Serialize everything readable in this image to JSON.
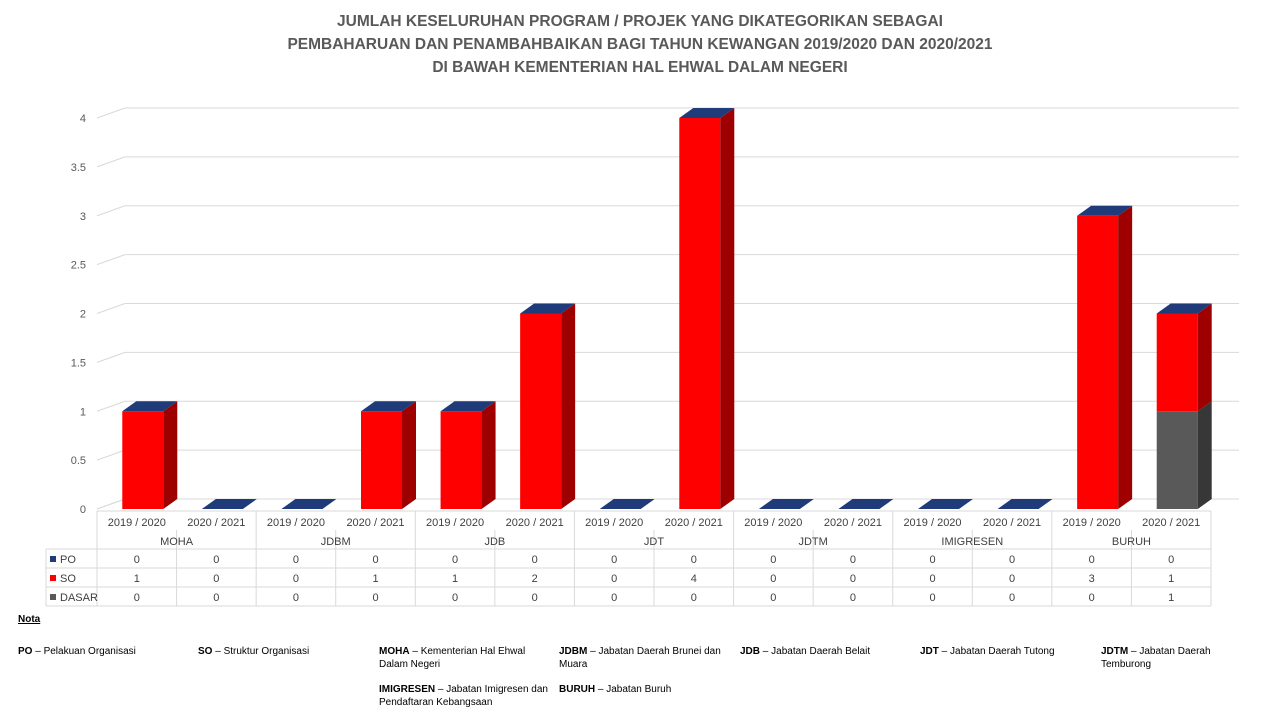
{
  "title": {
    "line1": "JUMLAH KESELURUHAN PROGRAM / PROJEK YANG DIKATEGORIKAN SEBAGAI",
    "line2": "PEMBAHARUAN DAN PENAMBAHBAIKAN BAGI TAHUN KEWANGAN 2019/2020 DAN 2020/2021",
    "line3": "DI BAWAH KEMENTERIAN HAL EHWAL DALAM NEGERI"
  },
  "chart_data": {
    "type": "bar",
    "stacked": true,
    "three_d": true,
    "grid": true,
    "legend": "data-table-left",
    "ylim": [
      0,
      4
    ],
    "yticks": [
      "0",
      "0.5",
      "1",
      "1.5",
      "2",
      "2.5",
      "3",
      "3.5",
      "4"
    ],
    "groups": [
      "MOHA",
      "JDBM",
      "JDB",
      "JDT",
      "JDTM",
      "IMIGRESEN",
      "BURUH"
    ],
    "categories": [
      "2019 / 2020",
      "2020 / 2021",
      "2019 / 2020",
      "2020 / 2021",
      "2019 / 2020",
      "2020 / 2021",
      "2019 / 2020",
      "2020 / 2021",
      "2019 / 2020",
      "2020 / 2021",
      "2019 / 2020",
      "2020 / 2021",
      "2019 / 2020",
      "2020 / 2021"
    ],
    "series": [
      {
        "name": "DASAR",
        "color": "#595959",
        "values": [
          0,
          0,
          0,
          0,
          0,
          0,
          0,
          0,
          0,
          0,
          0,
          0,
          0,
          1
        ]
      },
      {
        "name": "SO",
        "color": "#ff0000",
        "values": [
          1,
          0,
          0,
          1,
          1,
          2,
          0,
          4,
          0,
          0,
          0,
          0,
          3,
          1
        ]
      },
      {
        "name": "PO",
        "color": "#1f3b7a",
        "values": [
          0,
          0,
          0,
          0,
          0,
          0,
          0,
          0,
          0,
          0,
          0,
          0,
          0,
          0
        ]
      }
    ],
    "table_order": [
      "PO",
      "SO",
      "DASAR"
    ]
  },
  "notes": {
    "heading": "Nota",
    "items": [
      {
        "abbr": "PO",
        "desc": "Pelakuan Organisasi"
      },
      {
        "abbr": "SO",
        "desc": "Struktur Organisasi"
      },
      {
        "abbr": "MOHA",
        "desc": "Kementerian Hal Ehwal Dalam Negeri"
      },
      {
        "abbr": "JDBM",
        "desc": "Jabatan Daerah Brunei dan Muara"
      },
      {
        "abbr": "JDB",
        "desc": "Jabatan Daerah Belait"
      },
      {
        "abbr": "JDT",
        "desc": "Jabatan Daerah Tutong"
      },
      {
        "abbr": "JDTM",
        "desc": "Jabatan Daerah Temburong"
      },
      {
        "abbr": "IMIGRESEN",
        "desc": "Jabatan Imigresen dan Pendaftaran Kebangsaan"
      },
      {
        "abbr": "BURUH",
        "desc": "Jabatan Buruh"
      }
    ]
  }
}
